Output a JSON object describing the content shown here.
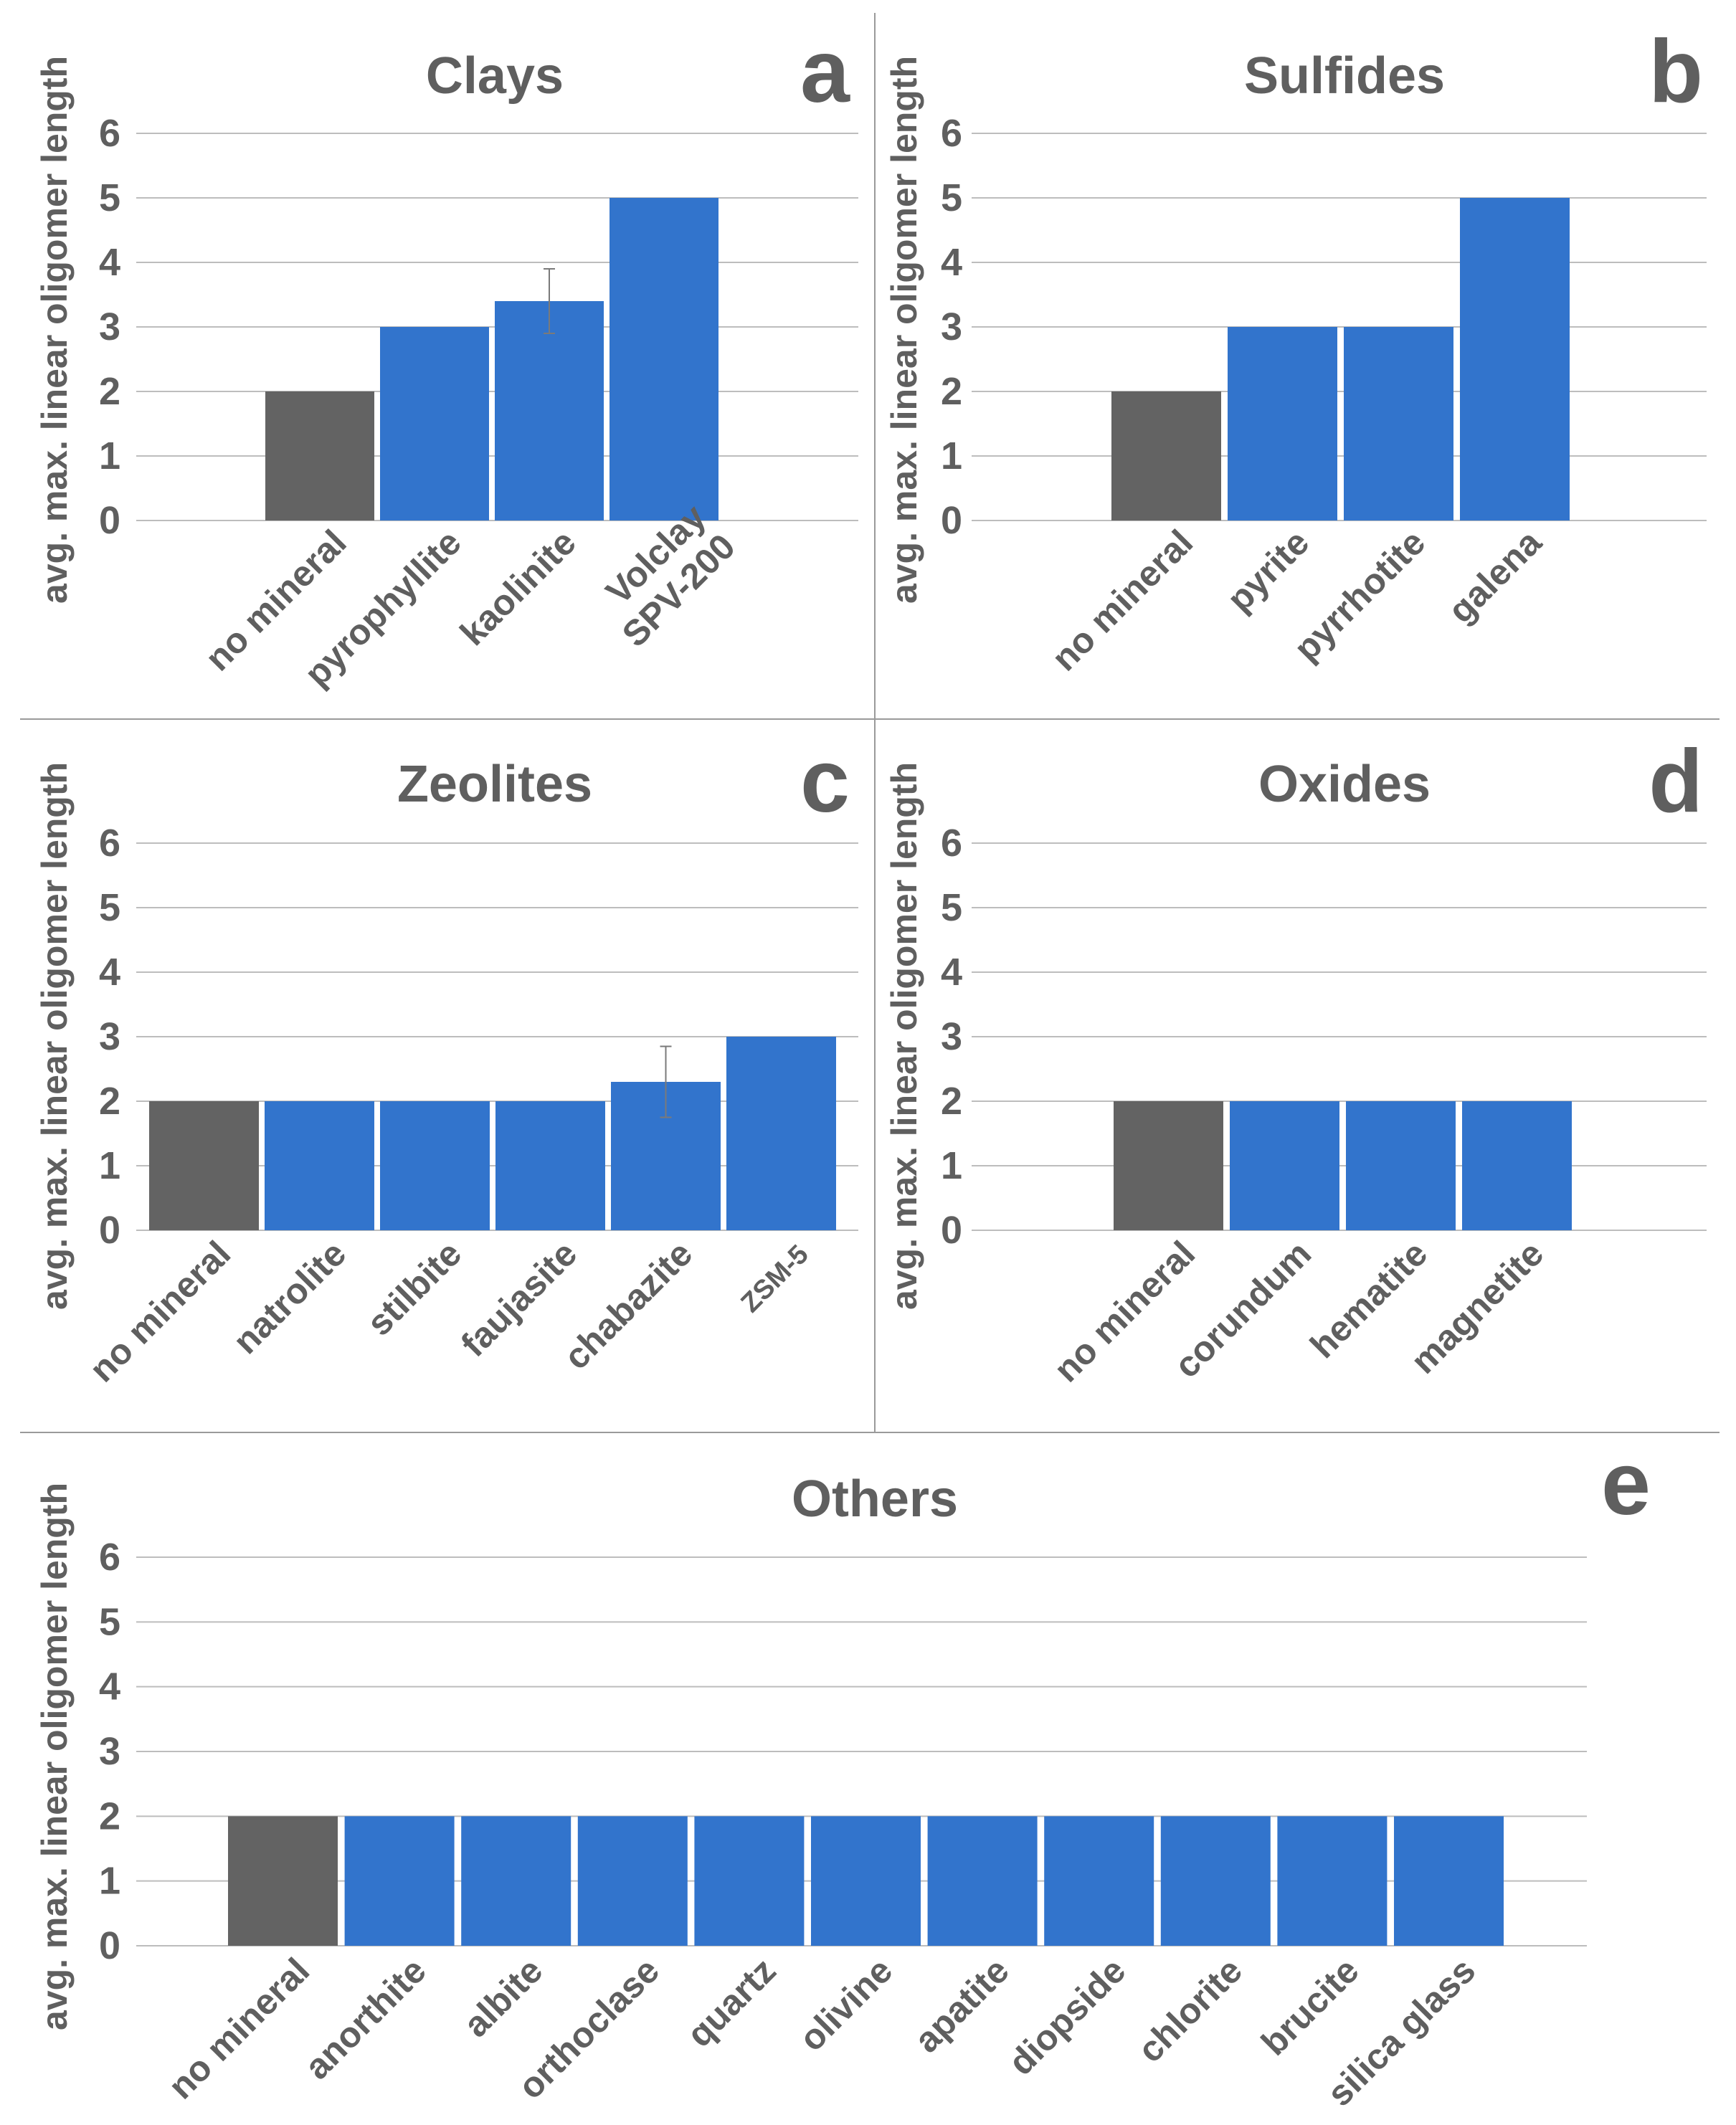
{
  "chart_data": [
    {
      "id": "a",
      "type": "bar",
      "title": "Clays",
      "panel_letter": "a",
      "ylabel": "avg. max. linear oligomer length",
      "ylim": [
        0,
        6
      ],
      "yticks": [
        "0",
        "1",
        "2",
        "3",
        "4",
        "5",
        "6"
      ],
      "categories": [
        [
          "no mineral"
        ],
        [
          "pyrophyllite"
        ],
        [
          "kaolinite"
        ],
        [
          "Volclay",
          "SPV-200"
        ]
      ],
      "values": [
        2,
        3,
        3.4,
        5
      ],
      "errors": [
        null,
        null,
        0.5,
        null
      ],
      "colors": [
        "#636363",
        "#3274cc",
        "#3274cc",
        "#3274cc"
      ]
    },
    {
      "id": "b",
      "type": "bar",
      "title": "Sulfides",
      "panel_letter": "b",
      "ylabel": "avg. max. linear oligomer length",
      "ylim": [
        0,
        6
      ],
      "yticks": [
        "0",
        "1",
        "2",
        "3",
        "4",
        "5",
        "6"
      ],
      "categories": [
        [
          "no mineral"
        ],
        [
          "pyrite"
        ],
        [
          "pyrrhotite"
        ],
        [
          "galena"
        ]
      ],
      "values": [
        2,
        3,
        3,
        5
      ],
      "errors": [
        null,
        null,
        null,
        null
      ],
      "colors": [
        "#636363",
        "#3274cc",
        "#3274cc",
        "#3274cc"
      ]
    },
    {
      "id": "c",
      "type": "bar",
      "title": "Zeolites",
      "panel_letter": "c",
      "ylabel": "avg. max. linear oligomer length",
      "ylim": [
        0,
        6
      ],
      "yticks": [
        "0",
        "1",
        "2",
        "3",
        "4",
        "5",
        "6"
      ],
      "categories": [
        [
          "no mineral"
        ],
        [
          "natrolite"
        ],
        [
          "stilbite"
        ],
        [
          "faujasite"
        ],
        [
          "chabazite"
        ],
        [
          "ZSM-5"
        ]
      ],
      "values": [
        2,
        2,
        2,
        2,
        2.3,
        3
      ],
      "errors": [
        null,
        null,
        null,
        null,
        0.55,
        null
      ],
      "colors": [
        "#636363",
        "#3274cc",
        "#3274cc",
        "#3274cc",
        "#3274cc",
        "#3274cc"
      ]
    },
    {
      "id": "d",
      "type": "bar",
      "title": "Oxides",
      "panel_letter": "d",
      "ylabel": "avg. max. linear oligomer length",
      "ylim": [
        0,
        6
      ],
      "yticks": [
        "0",
        "1",
        "2",
        "3",
        "4",
        "5",
        "6"
      ],
      "categories": [
        [
          "no mineral"
        ],
        [
          "corundum"
        ],
        [
          "hematite"
        ],
        [
          "magnetite"
        ]
      ],
      "values": [
        2,
        2,
        2,
        2
      ],
      "errors": [
        null,
        null,
        null,
        null
      ],
      "colors": [
        "#636363",
        "#3274cc",
        "#3274cc",
        "#3274cc"
      ]
    },
    {
      "id": "e",
      "type": "bar",
      "title": "Others",
      "panel_letter": "e",
      "ylabel": "avg. max. linear oligomer length",
      "ylim": [
        0,
        6
      ],
      "yticks": [
        "0",
        "1",
        "2",
        "3",
        "4",
        "5",
        "6"
      ],
      "categories": [
        [
          "no mineral"
        ],
        [
          "anorthite"
        ],
        [
          "albite"
        ],
        [
          "orthoclase"
        ],
        [
          "quartz"
        ],
        [
          "olivine"
        ],
        [
          "apatite"
        ],
        [
          "diopside"
        ],
        [
          "chlorite"
        ],
        [
          "brucite"
        ],
        [
          "silica glass"
        ]
      ],
      "values": [
        2,
        2,
        2,
        2,
        2,
        2,
        2,
        2,
        2,
        2,
        2
      ],
      "errors": [
        null,
        null,
        null,
        null,
        null,
        null,
        null,
        null,
        null,
        null,
        null
      ],
      "colors": [
        "#636363",
        "#3274cc",
        "#3274cc",
        "#3274cc",
        "#3274cc",
        "#3274cc",
        "#3274cc",
        "#3274cc",
        "#3274cc",
        "#3274cc",
        "#3274cc"
      ]
    }
  ]
}
